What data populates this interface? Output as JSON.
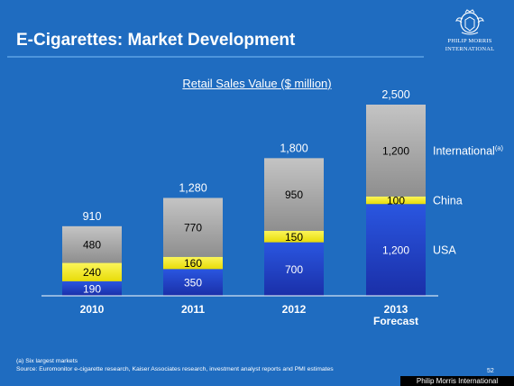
{
  "slide": {
    "title": "E-Cigarettes: Market Development",
    "page_number": "52"
  },
  "logo": {
    "line1": "PHILIP MORRIS",
    "line2": "INTERNATIONAL"
  },
  "footnotes": {
    "note_a": "(a)  Six largest markets",
    "source": "Source: Euromonitor e-cigarette research, Kaiser Associates research, investment analyst reports and PMI estimates"
  },
  "watermark": "Philip Morris International",
  "colors": {
    "background": "#1f6cc0",
    "usa": "#1c3fc6",
    "china": "#f5ee1a",
    "international": "#a9a9a9"
  },
  "chart_data": {
    "type": "bar",
    "stacked": true,
    "title": "Retail Sales Value ($ million)",
    "categories": [
      "2010",
      "2011",
      "2012",
      "2013\nForecast"
    ],
    "category_lines": [
      [
        "2010"
      ],
      [
        "2011"
      ],
      [
        "2012"
      ],
      [
        "2013",
        "Forecast"
      ]
    ],
    "series": [
      {
        "name": "USA",
        "values": [
          190,
          350,
          700,
          1200
        ],
        "labels": [
          "190",
          "350",
          "700",
          "1,200"
        ]
      },
      {
        "name": "China",
        "values": [
          240,
          160,
          150,
          100
        ],
        "labels": [
          "240",
          "160",
          "150",
          "100"
        ]
      },
      {
        "name": "International",
        "name_superscript": "(a)",
        "values": [
          480,
          770,
          950,
          1200
        ],
        "labels": [
          "480",
          "770",
          "950",
          "1,200"
        ]
      }
    ],
    "totals": [
      910,
      1280,
      1800,
      2500
    ],
    "total_labels": [
      "910",
      "1,280",
      "1,800",
      "2,500"
    ],
    "ylim": [
      0,
      2500
    ],
    "grid": false,
    "legend": "right, aligned with stacks"
  }
}
